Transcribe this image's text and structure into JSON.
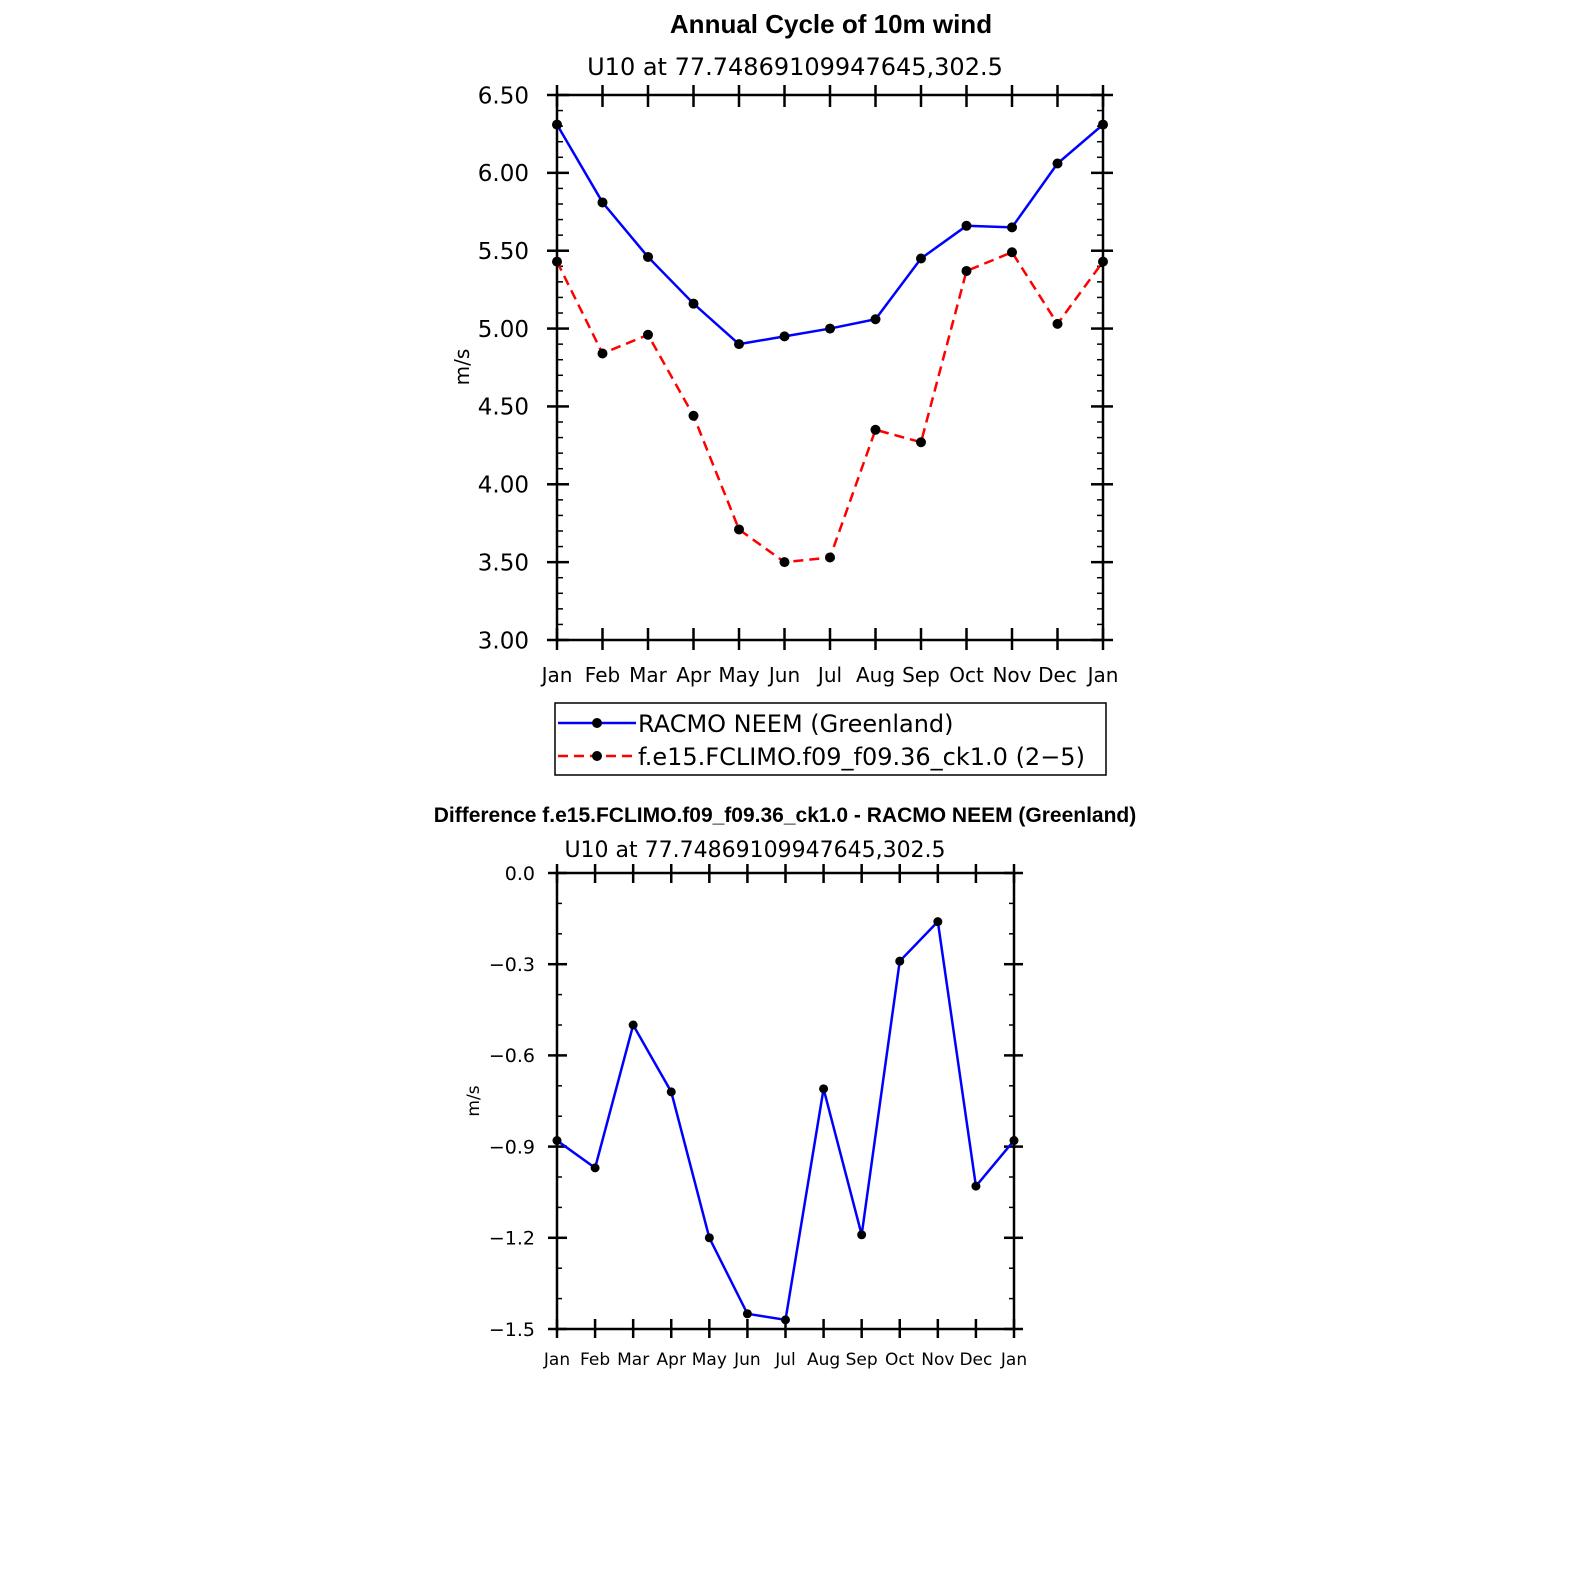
{
  "colors": {
    "racmo": "#0000ff",
    "model": "#ff0000",
    "marker": "#000000",
    "axis": "#000000"
  },
  "chart_data": [
    {
      "type": "line",
      "title": "Annual Cycle of 10m wind",
      "subtitle": "U10 at 77.74869109947645,302.5",
      "ylabel": "m/s",
      "xlabel": "",
      "ylim": [
        3.0,
        6.5
      ],
      "yticks": [
        "3.00",
        "3.50",
        "4.00",
        "4.50",
        "5.00",
        "5.50",
        "6.00",
        "6.50"
      ],
      "categories": [
        "Jan",
        "Feb",
        "Mar",
        "Apr",
        "May",
        "Jun",
        "Jul",
        "Aug",
        "Sep",
        "Oct",
        "Nov",
        "Dec",
        "Jan"
      ],
      "series": [
        {
          "name": "RACMO NEEM (Greenland)",
          "style": "solid",
          "values": [
            6.31,
            5.81,
            5.46,
            5.16,
            4.9,
            4.95,
            5.0,
            5.06,
            5.45,
            5.66,
            5.65,
            6.06,
            6.31
          ]
        },
        {
          "name": "f.e15.FCLIMO.f09_f09.36_ck1.0 (2−5)",
          "style": "dashed",
          "values": [
            5.43,
            4.84,
            4.96,
            4.44,
            3.71,
            3.5,
            3.53,
            4.35,
            4.27,
            5.37,
            5.49,
            5.03,
            5.43
          ]
        }
      ],
      "legend_position": "bottom"
    },
    {
      "type": "line",
      "title": "Difference f.e15.FCLIMO.f09_f09.36_ck1.0 - RACMO NEEM (Greenland)",
      "subtitle": "U10 at 77.74869109947645,302.5",
      "ylabel": "m/s",
      "xlabel": "",
      "ylim": [
        -1.5,
        0.0
      ],
      "yticks": [
        "−1.5",
        "−1.2",
        "−0.9",
        "−0.6",
        "−0.3",
        "0.0"
      ],
      "categories": [
        "Jan",
        "Feb",
        "Mar",
        "Apr",
        "May",
        "Jun",
        "Jul",
        "Aug",
        "Sep",
        "Oct",
        "Nov",
        "Dec",
        "Jan"
      ],
      "series": [
        {
          "name": "Difference",
          "style": "solid",
          "values": [
            -0.88,
            -0.97,
            -0.5,
            -0.72,
            -1.2,
            -1.45,
            -1.47,
            -0.71,
            -1.19,
            -0.29,
            -0.16,
            -1.03,
            -0.88
          ]
        }
      ]
    }
  ]
}
